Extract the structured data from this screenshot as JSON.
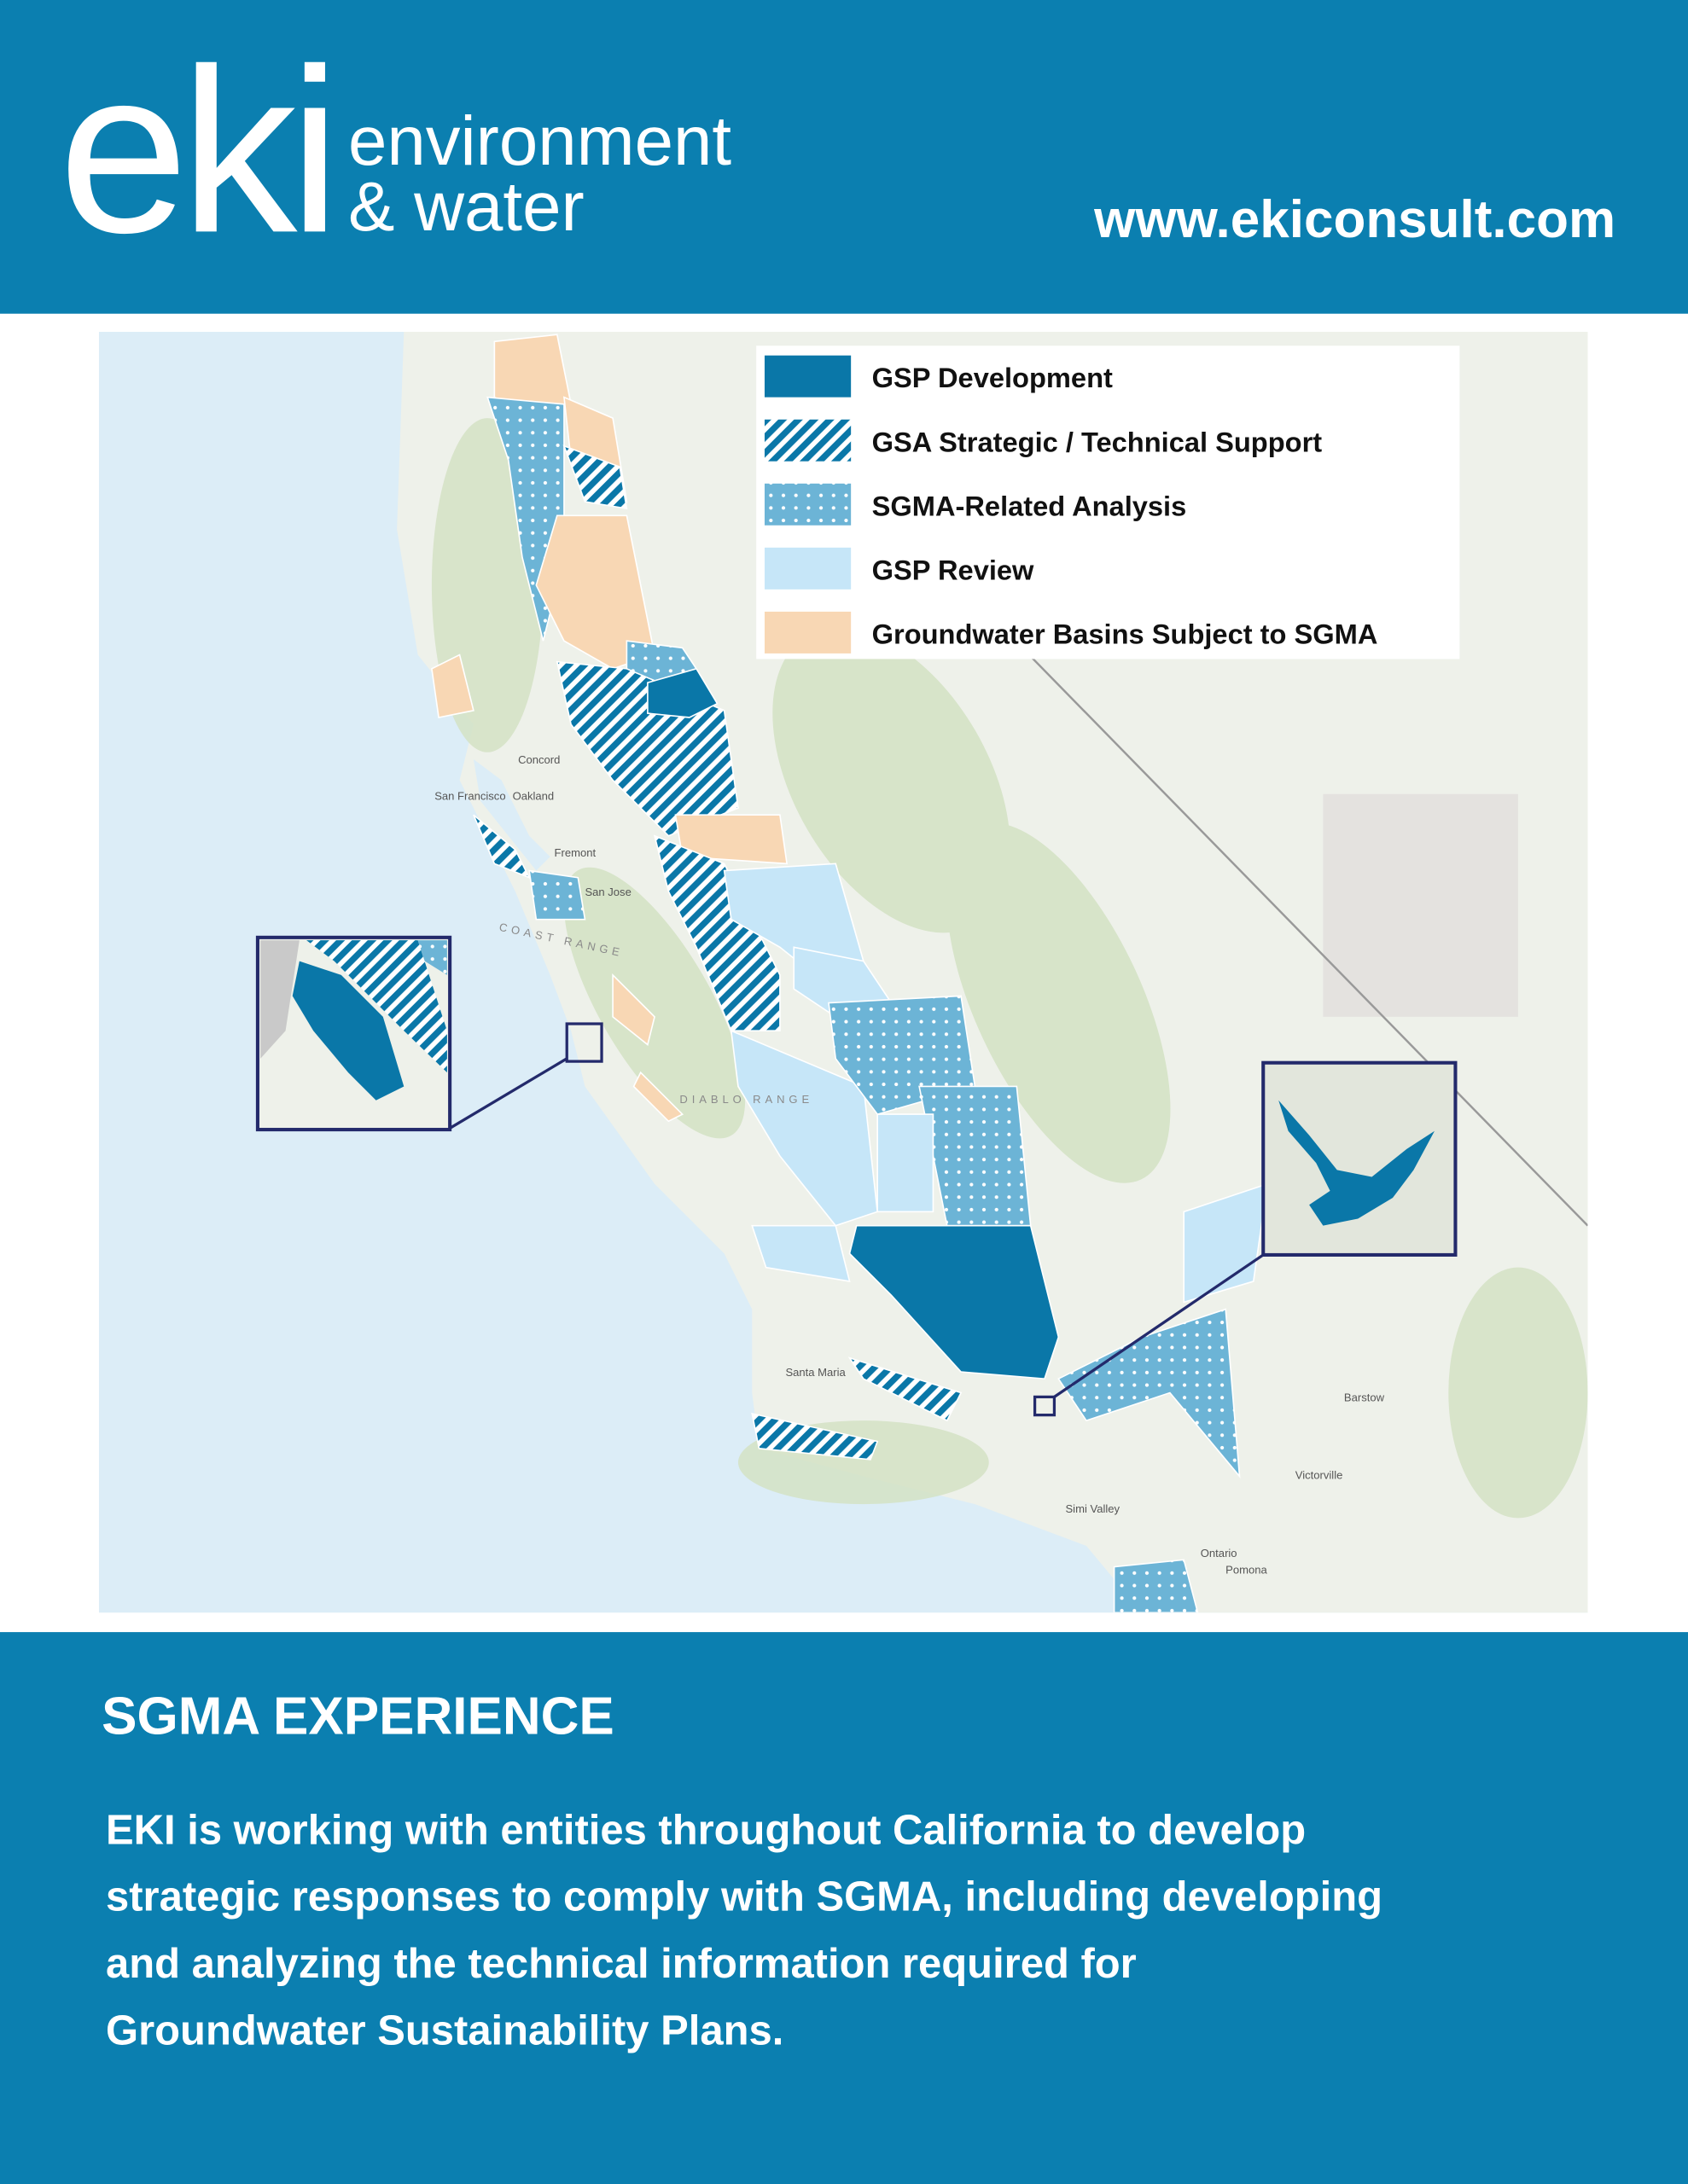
{
  "header": {
    "logo_mark": "eki",
    "logo_line1": "environment",
    "logo_line2": "& water",
    "url": "www.ekiconsult.com"
  },
  "map": {
    "legend": [
      "GSP Development",
      "GSA Strategic / Technical Support",
      "SGMA-Related Analysis",
      "GSP Review",
      "Groundwater Basins Subject to SGMA"
    ],
    "labels": [
      "Concord",
      "San Francisco",
      "Oakland",
      "San Jose",
      "Fremont",
      "Santa Maria",
      "Victorville",
      "Barstow",
      "Ontario",
      "Pomona",
      "Simi Valley",
      "COAST RANGE",
      "DIABLO RANGE"
    ]
  },
  "section": {
    "title": "SGMA EXPERIENCE",
    "body_lines": [
      "EKI is working with entities throughout California to develop",
      "strategic responses to comply with SGMA, including developing",
      "and analyzing the technical information required for",
      "Groundwater Sustainability Plans."
    ]
  }
}
